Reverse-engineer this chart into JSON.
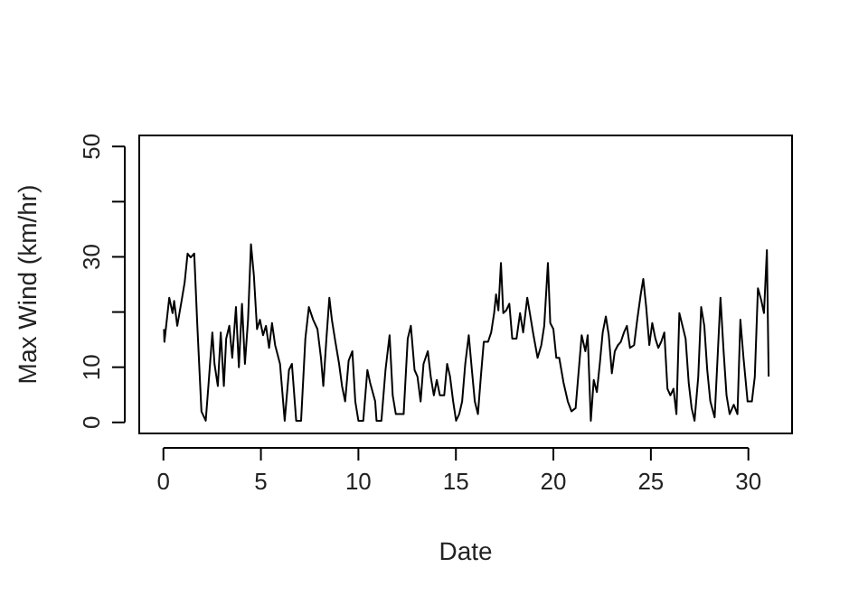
{
  "chart_data": {
    "type": "line",
    "xlabel": "Date",
    "ylabel": "Max Wind (km/hr)",
    "xlim": [
      -1.24,
      32.24
    ],
    "ylim": [
      -2,
      52
    ],
    "xticks": [
      0,
      5,
      10,
      15,
      20,
      25,
      30
    ],
    "yticks": [
      0,
      10,
      {
        "value": 20,
        "label": null
      },
      30,
      {
        "value": 40,
        "label": null
      },
      50
    ],
    "series": [
      {
        "color": "#000000",
        "x": [
          0.03,
          0.05,
          0.3,
          0.47,
          0.55,
          0.71,
          0.93,
          1.09,
          1.24,
          1.4,
          1.58,
          1.74,
          1.95,
          2.17,
          2.32,
          2.51,
          2.62,
          2.79,
          2.94,
          3.1,
          3.22,
          3.38,
          3.53,
          3.72,
          3.87,
          4.03,
          4.18,
          4.34,
          4.49,
          4.64,
          4.8,
          4.95,
          5.11,
          5.26,
          5.42,
          5.57,
          5.73,
          5.98,
          6.22,
          6.44,
          6.59,
          6.81,
          7.06,
          7.28,
          7.46,
          7.68,
          7.9,
          8.08,
          8.2,
          8.36,
          8.51,
          8.64,
          8.82,
          9.01,
          9.16,
          9.32,
          9.5,
          9.69,
          9.84,
          10,
          10.25,
          10.46,
          10.6,
          10.86,
          10.93,
          11.18,
          11.39,
          11.6,
          11.76,
          11.92,
          12.32,
          12.53,
          12.69,
          12.88,
          13.03,
          13.19,
          13.34,
          13.56,
          13.71,
          13.87,
          14.02,
          14.18,
          14.4,
          14.55,
          14.7,
          14.86,
          15.01,
          15.17,
          15.32,
          15.48,
          15.66,
          15.82,
          15.97,
          16.13,
          16.28,
          16.43,
          16.65,
          16.81,
          16.96,
          17.06,
          17.18,
          17.31,
          17.43,
          17.58,
          17.74,
          17.89,
          18.11,
          18.29,
          18.45,
          18.66,
          18.82,
          18.98,
          19.19,
          19.38,
          19.53,
          19.72,
          19.84,
          20,
          20.15,
          20.3,
          20.52,
          20.74,
          20.93,
          21.14,
          21.45,
          21.64,
          21.76,
          21.92,
          22.07,
          22.23,
          22.38,
          22.53,
          22.69,
          22.84,
          23,
          23.15,
          23.31,
          23.46,
          23.62,
          23.77,
          23.93,
          24.14,
          24.3,
          24.48,
          24.61,
          24.76,
          24.92,
          25.07,
          25.23,
          25.38,
          25.53,
          25.69,
          25.85,
          26,
          26.16,
          26.31,
          26.46,
          26.62,
          26.78,
          26.94,
          27.09,
          27.24,
          27.43,
          27.58,
          27.74,
          27.89,
          28.05,
          28.27,
          28.42,
          28.57,
          28.73,
          28.88,
          29.04,
          29.25,
          29.44,
          29.59,
          29.75,
          29.96,
          30.18,
          30.33,
          30.49,
          30.67,
          30.8,
          30.95,
          31.04
        ],
        "values": [
          16.9,
          14.6,
          22.6,
          19.8,
          22,
          17.5,
          22,
          25.4,
          30.6,
          29.9,
          30.6,
          17.5,
          2,
          0.3,
          7.2,
          16.3,
          10.6,
          6.6,
          16.3,
          6.6,
          15.2,
          17.5,
          11.7,
          20.9,
          10,
          21.5,
          10.6,
          18.6,
          32.3,
          26.6,
          16.9,
          18.6,
          15.8,
          17.5,
          13.5,
          18,
          14,
          10.6,
          0.3,
          9.5,
          10.6,
          0.3,
          0.3,
          15.2,
          20.9,
          18.6,
          16.9,
          11.7,
          6.6,
          15.2,
          22.6,
          18.6,
          14.6,
          10.6,
          6.6,
          3.8,
          11.2,
          12.9,
          3.8,
          0.3,
          0.3,
          9.5,
          7.2,
          3.8,
          0.3,
          0.3,
          9.5,
          15.8,
          4.9,
          1.5,
          1.5,
          15.2,
          17.5,
          9.5,
          8.3,
          3.8,
          10.6,
          12.9,
          8.3,
          4.9,
          7.7,
          4.9,
          4.9,
          10.6,
          8.3,
          3.8,
          0.3,
          1.5,
          3.8,
          10.6,
          15.8,
          9.5,
          3.8,
          1.5,
          8.3,
          14.6,
          14.6,
          16.3,
          19.8,
          23.2,
          20.3,
          28.9,
          19.8,
          20.3,
          21.5,
          15.2,
          15.2,
          19.8,
          16.3,
          22.6,
          19.2,
          15.8,
          11.7,
          14,
          17.5,
          28.9,
          18,
          16.9,
          11.7,
          11.7,
          7.2,
          3.8,
          2,
          2.6,
          15.8,
          12.9,
          15.8,
          0.3,
          7.7,
          5.5,
          10.6,
          16.3,
          19.2,
          15.8,
          8.9,
          12.9,
          14,
          14.6,
          16.3,
          17.5,
          13.5,
          14,
          18.6,
          23.2,
          26,
          20.9,
          14,
          18,
          15.2,
          13.5,
          14.6,
          16.3,
          6.1,
          4.9,
          6.1,
          1.5,
          19.8,
          17.5,
          15.2,
          7.2,
          2.6,
          0.3,
          8.3,
          20.9,
          17.5,
          9.5,
          3.8,
          0.9,
          11.7,
          22.6,
          12.9,
          4.9,
          1.5,
          3.2,
          1.5,
          18.6,
          11.7,
          3.8,
          3.8,
          8.3,
          24.3,
          22,
          19.8,
          31.2,
          8.3
        ]
      }
    ]
  }
}
